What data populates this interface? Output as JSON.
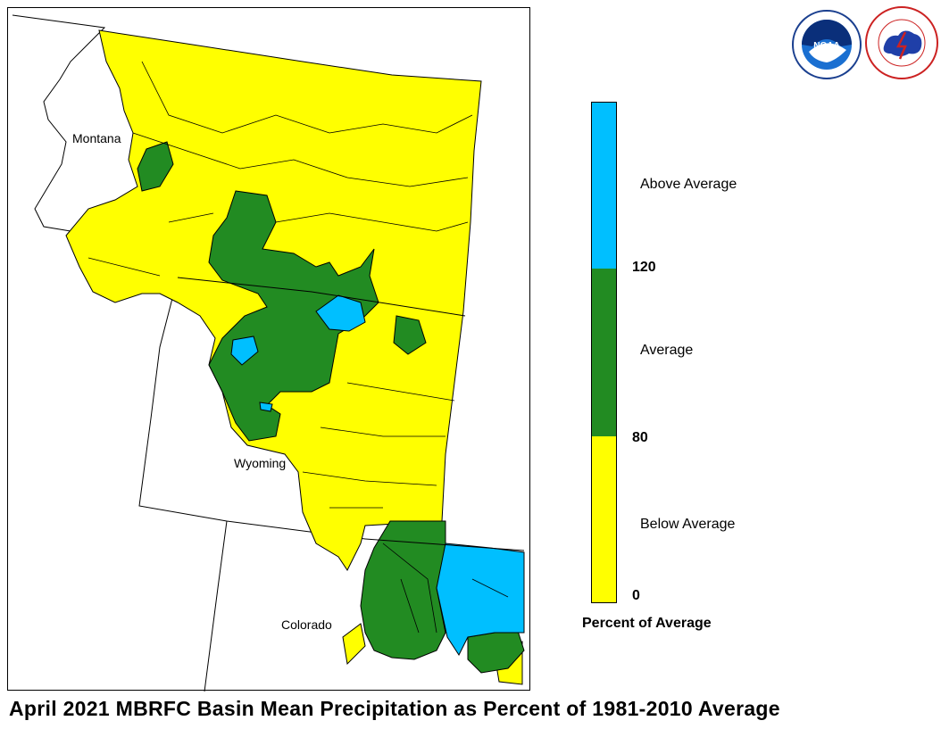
{
  "title": "April 2021 MBRFC Basin Mean Precipitation as Percent of 1981-2010 Average",
  "states": [
    {
      "id": "montana",
      "label": "Montana"
    },
    {
      "id": "wyoming",
      "label": "Wyoming"
    },
    {
      "id": "colorado",
      "label": "Colorado"
    }
  ],
  "legend": {
    "title": "Percent of Average",
    "categories": [
      {
        "label": "Above Average",
        "min": 120,
        "color": "#00bfff"
      },
      {
        "label": "Average",
        "min": 80,
        "max": 120,
        "color": "#228b22"
      },
      {
        "label": "Below Average",
        "min": 0,
        "max": 80,
        "color": "#ffff00"
      }
    ],
    "breaks": [
      "120",
      "80",
      "0"
    ]
  },
  "logos": [
    {
      "name": "noaa-logo",
      "text": "NOAA"
    },
    {
      "name": "nws-logo",
      "text": "NATIONAL WEATHER SERVICE"
    }
  ],
  "colors": {
    "below": "#ffff00",
    "average": "#228b22",
    "above": "#00bfff",
    "border": "#000000"
  }
}
